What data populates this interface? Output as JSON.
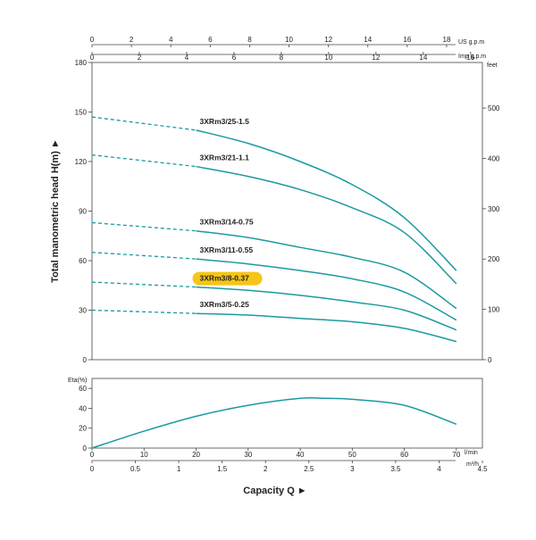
{
  "chart_data": [
    {
      "type": "line",
      "name_hint": "head-vs-flow",
      "ylabel": "Total manometric head H(m) ►",
      "ylim": [
        0,
        180
      ],
      "y_ticks": [
        0,
        30,
        60,
        90,
        120,
        150,
        180
      ],
      "xlim": [
        0,
        75
      ],
      "right_axis": {
        "label": "feet",
        "ticks": [
          0,
          100,
          200,
          300,
          400,
          500
        ]
      },
      "top_axis_us": {
        "label": "US g.p.m",
        "ticks": [
          0,
          2,
          4,
          6,
          8,
          10,
          12,
          14,
          16,
          18
        ]
      },
      "top_axis_imp": {
        "label": "Imp g.p.m",
        "ticks": [
          0,
          2,
          4,
          6,
          8,
          10,
          12,
          14,
          16
        ]
      },
      "grid": false,
      "highlight_color": "#f5c518",
      "curve_color": "#1a9aa0",
      "series": [
        {
          "name": "3XRm3/25-1.5",
          "x": [
            0,
            20,
            30,
            40,
            50,
            60,
            70
          ],
          "y": [
            147,
            139,
            131,
            120,
            106,
            86,
            54
          ]
        },
        {
          "name": "3XRm3/21-1.1",
          "x": [
            0,
            20,
            30,
            40,
            50,
            60,
            70
          ],
          "y": [
            124,
            117,
            111,
            103,
            92,
            77,
            46
          ]
        },
        {
          "name": "3XRm3/14-0.75",
          "x": [
            0,
            20,
            30,
            40,
            50,
            60,
            70
          ],
          "y": [
            83,
            78,
            74,
            68,
            62,
            53,
            31
          ]
        },
        {
          "name": "3XRm3/11-0.55",
          "x": [
            0,
            20,
            30,
            40,
            50,
            60,
            70
          ],
          "y": [
            65,
            61,
            58,
            54,
            49,
            41,
            24
          ]
        },
        {
          "name": "3XRm3/8-0.37",
          "x": [
            0,
            20,
            30,
            40,
            50,
            60,
            70
          ],
          "y": [
            47,
            44,
            42,
            39,
            35,
            30,
            18
          ],
          "highlighted": true
        },
        {
          "name": "3XRm3/5-0.25",
          "x": [
            0,
            20,
            30,
            40,
            50,
            60,
            70
          ],
          "y": [
            30,
            28,
            27,
            25,
            23,
            19,
            11
          ]
        }
      ]
    },
    {
      "type": "line",
      "name_hint": "efficiency-vs-flow",
      "ylabel": "Eta(%)",
      "ylim": [
        0,
        70
      ],
      "y_ticks": [
        0,
        20,
        40,
        60
      ],
      "xlim": [
        0,
        75
      ],
      "x_ticks": [
        0,
        10,
        20,
        30,
        40,
        50,
        60,
        70
      ],
      "xlabel_lmin": "l/min",
      "m3h_ticks": [
        "0",
        "0.5",
        "1",
        "1.5",
        "2",
        "2.5",
        "3",
        "3.5",
        "4",
        "4.5"
      ],
      "xlabel_m3h": "m³/h",
      "xlabel": "Capacity Q ►",
      "series": [
        {
          "name": "",
          "x": [
            0,
            10,
            20,
            30,
            40,
            45,
            50,
            60,
            70
          ],
          "y": [
            0,
            17,
            32,
            43,
            50,
            50,
            49,
            43,
            24
          ]
        }
      ]
    }
  ]
}
